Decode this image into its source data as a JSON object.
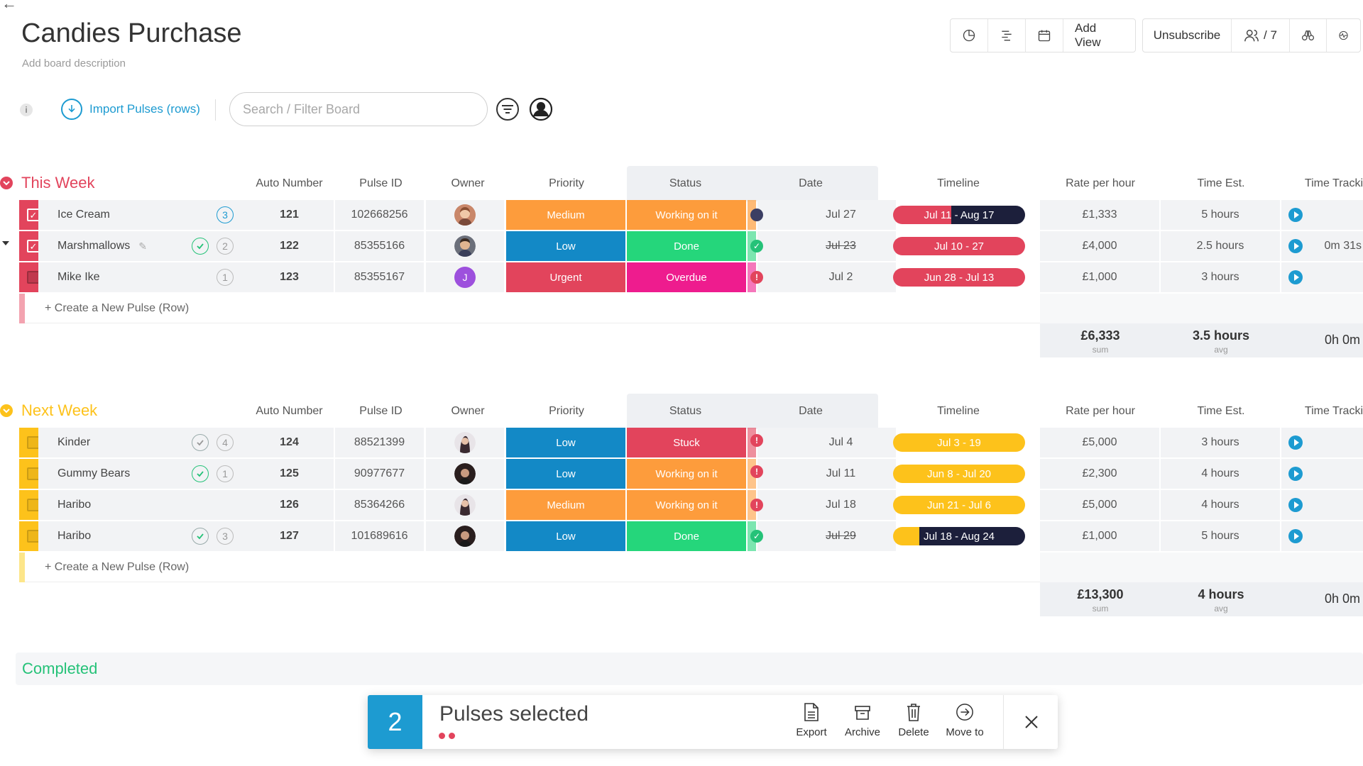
{
  "board": {
    "title": "Candies Purchase",
    "description": "Add board description"
  },
  "toolbar": {
    "add_view": "Add View",
    "unsubscribe": "Unsubscribe",
    "members": "/ 7"
  },
  "actions": {
    "info": "i",
    "import": "Import Pulses (rows)",
    "search_placeholder": "Search / Filter Board"
  },
  "columns": {
    "auto_number": "Auto Number",
    "pulse_id": "Pulse ID",
    "owner": "Owner",
    "priority": "Priority",
    "status": "Status",
    "date": "Date",
    "timeline": "Timeline",
    "rate": "Rate per hour",
    "time_est": "Time Est.",
    "time_tracking": "Time Tracki"
  },
  "colors": {
    "this_week": "#e2445c",
    "next_week": "#fdc21b",
    "completed": "#25c278",
    "medium": "#fd9c3c",
    "low": "#1389c6",
    "urgent": "#e2445c",
    "working": "#fd9c3c",
    "done": "#25d67b",
    "overdue": "#ee1c8e",
    "stuck": "#e2445c",
    "accent": "#1d9bd1"
  },
  "groups": [
    {
      "name": "This Week",
      "create_label": "+ Create a New Pulse (Row)",
      "rows": [
        {
          "name": "Ice Cream",
          "badge": "3",
          "auto": "121",
          "pulse_id": "102668256",
          "priority": "Medium",
          "status": "Working on it",
          "date": "Jul 27",
          "timeline": "Jul 11 - Aug 17",
          "rate": "£1,333",
          "time_est": "5 hours",
          "tracking": ""
        },
        {
          "name": "Marshmallows",
          "badge": "2",
          "auto": "122",
          "pulse_id": "85355166",
          "priority": "Low",
          "status": "Done",
          "date": "Jul 23",
          "timeline": "Jul 10 - 27",
          "rate": "£4,000",
          "time_est": "2.5 hours",
          "tracking": "0m 31s"
        },
        {
          "name": "Mike Ike",
          "badge": "1",
          "auto": "123",
          "pulse_id": "85355167",
          "owner_initial": "J",
          "priority": "Urgent",
          "status": "Overdue",
          "date": "Jul 2",
          "timeline": "Jun 28 - Jul 13",
          "rate": "£1,000",
          "time_est": "3 hours",
          "tracking": ""
        }
      ],
      "sum": {
        "rate": "£6,333",
        "rate_lbl": "sum",
        "time": "3.5 hours",
        "time_lbl": "avg",
        "tracking": "0h 0m"
      }
    },
    {
      "name": "Next Week",
      "create_label": "+ Create a New Pulse (Row)",
      "rows": [
        {
          "name": "Kinder",
          "badge": "4",
          "auto": "124",
          "pulse_id": "88521399",
          "priority": "Low",
          "status": "Stuck",
          "date": "Jul 4",
          "timeline": "Jul 3 - 19",
          "rate": "£5,000",
          "time_est": "3 hours"
        },
        {
          "name": "Gummy Bears",
          "badge": "1",
          "auto": "125",
          "pulse_id": "90977677",
          "priority": "Low",
          "status": "Working on it",
          "date": "Jul 11",
          "timeline": "Jun 8 - Jul 20",
          "rate": "£2,300",
          "time_est": "4 hours"
        },
        {
          "name": "Haribo",
          "badge": "",
          "auto": "126",
          "pulse_id": "85364266",
          "priority": "Medium",
          "status": "Working on it",
          "date": "Jul 18",
          "timeline": "Jun 21 - Jul 6",
          "rate": "£5,000",
          "time_est": "4 hours"
        },
        {
          "name": "Haribo",
          "badge": "3",
          "auto": "127",
          "pulse_id": "101689616",
          "priority": "Low",
          "status": "Done",
          "date": "Jul 29",
          "timeline": "Jul 18 - Aug 24",
          "rate": "£1,000",
          "time_est": "5 hours"
        }
      ],
      "sum": {
        "rate": "£13,300",
        "rate_lbl": "sum",
        "time": "4 hours",
        "time_lbl": "avg",
        "tracking": "0h 0m"
      }
    },
    {
      "name": "Completed"
    }
  ],
  "selection": {
    "count": "2",
    "label": "Pulses selected",
    "export": "Export",
    "archive": "Archive",
    "delete": "Delete",
    "move_to": "Move to"
  }
}
